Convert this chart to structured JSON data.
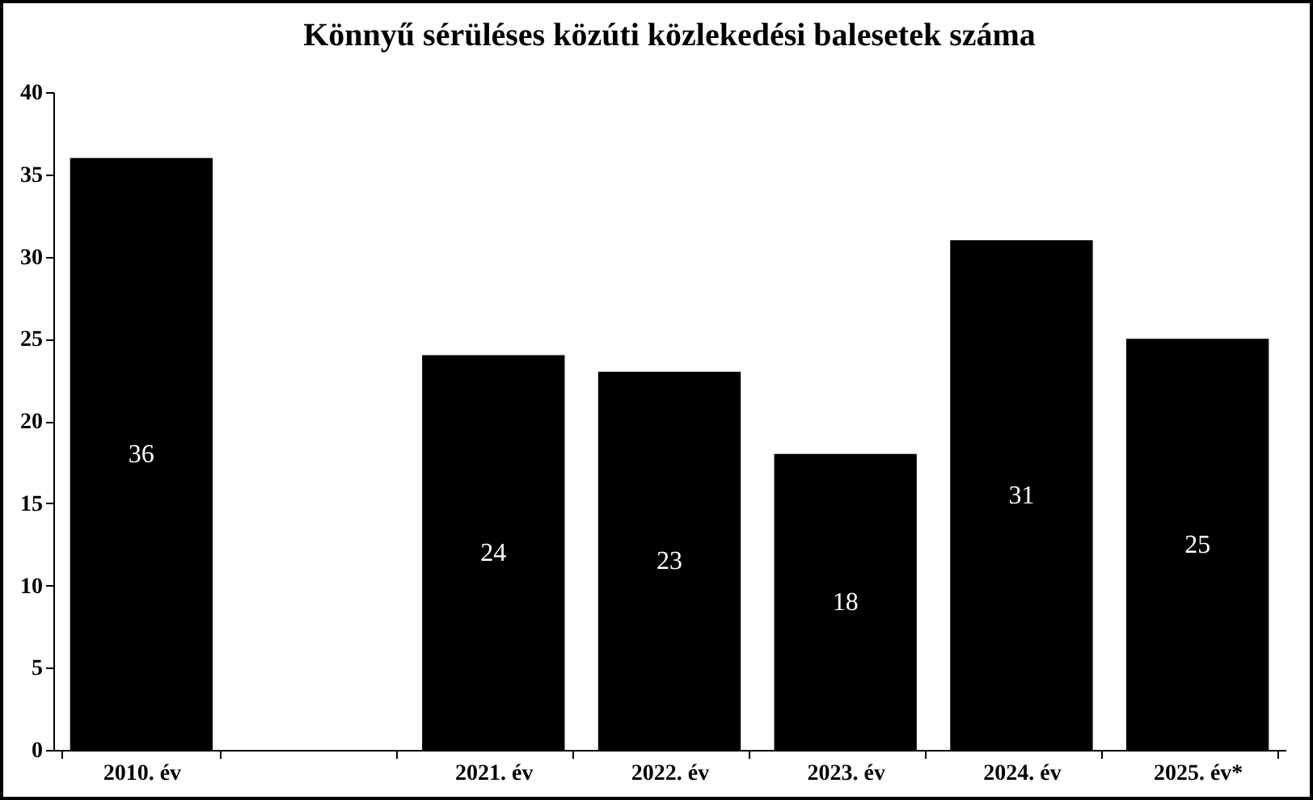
{
  "chart_data": {
    "type": "bar",
    "title": "Könnyű sérüléses közúti közlekedési balesetek száma",
    "categories": [
      "2010. év",
      null,
      "2021. év",
      "2022. év",
      "2023. év",
      "2024. év",
      "2025. év*"
    ],
    "values": [
      36,
      null,
      24,
      23,
      18,
      31,
      25
    ],
    "color": "#000000",
    "ylim": [
      0,
      40
    ],
    "yticks": [
      0,
      5,
      10,
      15,
      20,
      25,
      30,
      35,
      40
    ],
    "data_labels": true,
    "grid": false
  }
}
